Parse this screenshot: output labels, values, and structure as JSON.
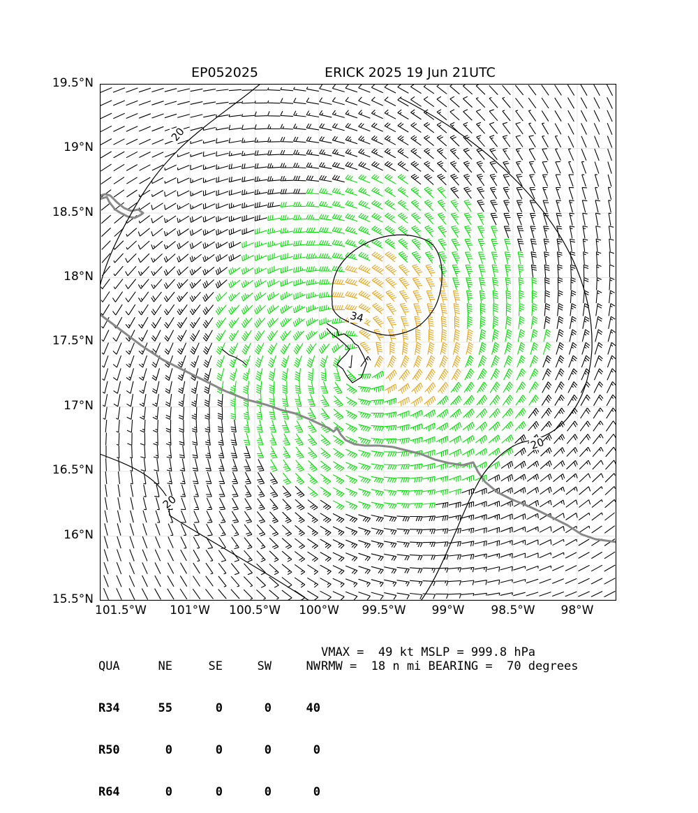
{
  "header": {
    "storm_id": "EP052025",
    "storm_label": "ERICK 2025 19 Jun 21UTC"
  },
  "axes": {
    "lat_labels": [
      "19.5°N",
      "19°N",
      "18.5°N",
      "18°N",
      "17.5°N",
      "17°N",
      "16.5°N",
      "16°N",
      "15.5°N"
    ],
    "lon_labels": [
      "101.5°W",
      "101°W",
      "100.5°W",
      "100°W",
      "99.5°W",
      "99°W",
      "98.5°W",
      "98°W"
    ],
    "lat_range": [
      15.5,
      19.5
    ],
    "lon_range": [
      -101.83,
      -97.83
    ],
    "grid": true
  },
  "map": {
    "colors": {
      "below_34kt": "#000000",
      "gale_34_49kt": "#00e000",
      "storm_50kt_plus": "#e8a317",
      "coastline": "#888888",
      "contour": "#000000"
    },
    "contour_labels": [
      "20",
      "34",
      "20",
      "20"
    ],
    "center": {
      "lat": 17.55,
      "lon": -99.6
    },
    "rmw_nmi": 18,
    "vmax_kt": 49
  },
  "wind_radii_table": {
    "header": [
      "QUA",
      "NE",
      "SE",
      "SW",
      "NW"
    ],
    "rows": [
      {
        "label": "R34",
        "values": [
          "55",
          "0",
          "0",
          "40"
        ]
      },
      {
        "label": "R50",
        "values": [
          "0",
          "0",
          "0",
          "0"
        ]
      },
      {
        "label": "R64",
        "values": [
          "0",
          "0",
          "0",
          "0"
        ]
      }
    ]
  },
  "stats": {
    "line1": "VMAX =  49 kt MSLP = 999.8 hPa",
    "line2": "RMW =  18 n mi BEARING =  70 degrees"
  }
}
